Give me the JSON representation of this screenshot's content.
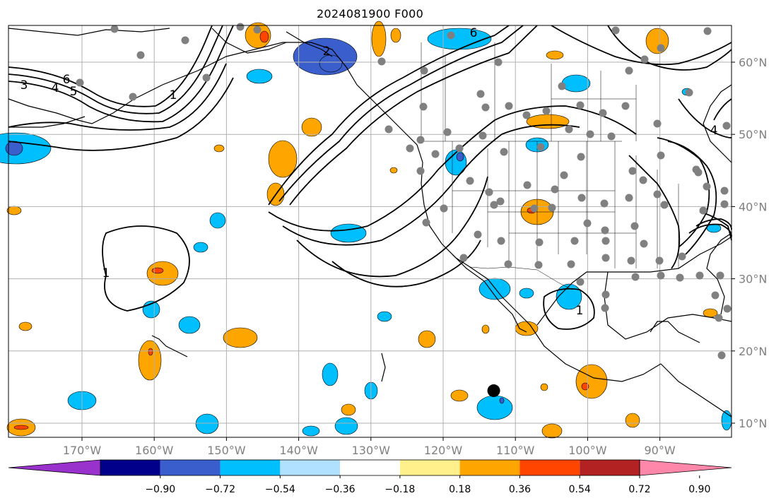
{
  "title": "2024081900 F000",
  "map": {
    "lon_ticks": [
      {
        "lon": -170,
        "label": "170°W"
      },
      {
        "lon": -160,
        "label": "160°W"
      },
      {
        "lon": -150,
        "label": "150°W"
      },
      {
        "lon": -140,
        "label": "140°W"
      },
      {
        "lon": -130,
        "label": "130°W"
      },
      {
        "lon": -120,
        "label": "120°W"
      },
      {
        "lon": -110,
        "label": "110°W"
      },
      {
        "lon": -100,
        "label": "100°W"
      },
      {
        "lon": -90,
        "label": "90°W"
      }
    ],
    "lat_ticks": [
      {
        "lat": 60,
        "label": "60°N"
      },
      {
        "lat": 50,
        "label": "50°N"
      },
      {
        "lat": 40,
        "label": "40°N"
      },
      {
        "lat": 30,
        "label": "30°N"
      },
      {
        "lat": 20,
        "label": "20°N"
      },
      {
        "lat": 10,
        "label": "10°N"
      }
    ],
    "marker": {
      "lon": -113,
      "lat": 14.5,
      "color": "#000000"
    },
    "contour_labels": [
      "1",
      "2",
      "3",
      "4",
      "5",
      "6"
    ]
  },
  "colorbar": {
    "ticks": [
      "−0.90",
      "−0.72",
      "−0.54",
      "−0.36",
      "−0.18",
      "0.18",
      "0.36",
      "0.54",
      "0.72",
      "0.90"
    ],
    "colors": [
      "#9932cc",
      "#00008b",
      "#3a5fcd",
      "#00bfff",
      "#b0e2ff",
      "#ffffff",
      "#fff08c",
      "#ffa500",
      "#ff4500",
      "#b22222",
      "#ff88aa"
    ]
  }
}
